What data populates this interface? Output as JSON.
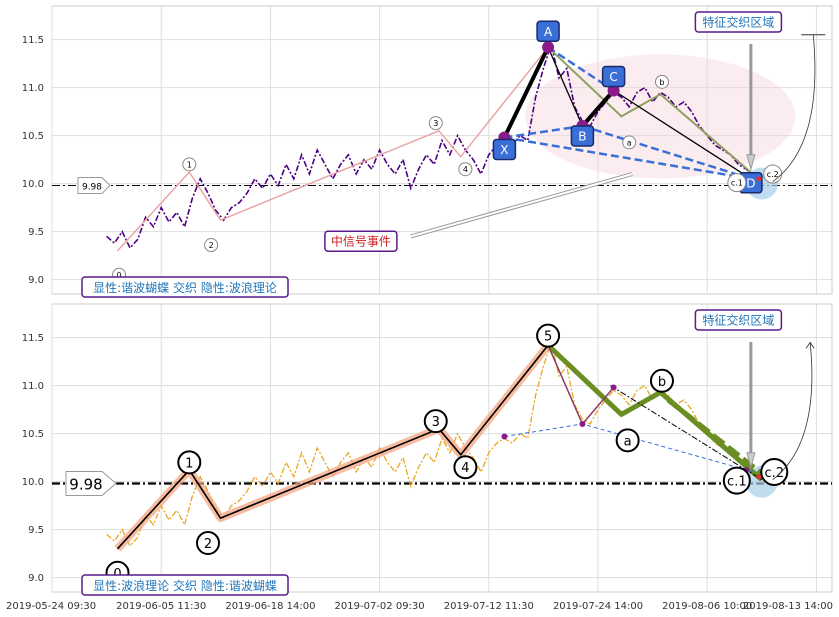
{
  "chart_data": [
    {
      "type": "line",
      "panel": "top",
      "ylim": [
        8.85,
        11.85
      ],
      "y_ticks": [
        "9.0",
        "9.5",
        "10.0",
        "10.5",
        "11.0",
        "11.5"
      ],
      "reference_value": 9.98,
      "reference_label": "9.98",
      "price_series": [
        [
          0.5,
          9.45
        ],
        [
          1,
          9.38
        ],
        [
          1.5,
          9.5
        ],
        [
          2,
          9.33
        ],
        [
          2.5,
          9.42
        ],
        [
          3,
          9.65
        ],
        [
          3.5,
          9.55
        ],
        [
          4,
          9.75
        ],
        [
          4.5,
          9.6
        ],
        [
          5,
          9.7
        ],
        [
          5.5,
          9.55
        ],
        [
          6,
          9.85
        ],
        [
          6.5,
          10.05
        ],
        [
          7,
          9.9
        ],
        [
          7.5,
          9.72
        ],
        [
          8,
          9.62
        ],
        [
          8.5,
          9.75
        ],
        [
          9,
          9.8
        ],
        [
          9.5,
          9.9
        ],
        [
          10,
          10.05
        ],
        [
          10.5,
          9.95
        ],
        [
          11,
          10.1
        ],
        [
          11.5,
          9.98
        ],
        [
          12,
          10.2
        ],
        [
          12.5,
          10.05
        ],
        [
          13,
          10.3
        ],
        [
          13.5,
          10.1
        ],
        [
          14,
          10.35
        ],
        [
          14.5,
          10.2
        ],
        [
          15,
          10.05
        ],
        [
          15.5,
          10.2
        ],
        [
          16,
          10.3
        ],
        [
          16.5,
          10.1
        ],
        [
          17,
          10.25
        ],
        [
          17.5,
          10.15
        ],
        [
          18,
          10.35
        ],
        [
          18.5,
          10.2
        ],
        [
          19,
          10.1
        ],
        [
          19.5,
          10.25
        ],
        [
          20,
          9.95
        ],
        [
          20.5,
          10.15
        ],
        [
          21,
          10.3
        ],
        [
          21.5,
          10.2
        ],
        [
          22,
          10.45
        ],
        [
          22.5,
          10.3
        ],
        [
          23,
          10.5
        ],
        [
          23.5,
          10.35
        ],
        [
          24,
          10.25
        ],
        [
          24.5,
          10.1
        ],
        [
          25,
          10.3
        ],
        [
          25.5,
          10.4
        ],
        [
          26,
          10.45
        ],
        [
          26.5,
          10.4
        ],
        [
          27,
          10.5
        ],
        [
          27.5,
          10.45
        ],
        [
          28,
          10.9
        ],
        [
          28.5,
          11.2
        ],
        [
          29,
          11.45
        ],
        [
          29.5,
          11.1
        ],
        [
          30,
          11.2
        ],
        [
          30.5,
          10.8
        ],
        [
          31,
          10.65
        ],
        [
          31.5,
          10.6
        ],
        [
          32,
          10.75
        ],
        [
          32.5,
          10.85
        ],
        [
          33,
          10.95
        ],
        [
          33.5,
          10.9
        ],
        [
          34,
          10.8
        ],
        [
          34.5,
          10.95
        ],
        [
          35,
          11.0
        ],
        [
          35.5,
          10.85
        ],
        [
          36,
          10.95
        ],
        [
          36.5,
          10.9
        ],
        [
          37,
          10.8
        ],
        [
          37.5,
          10.85
        ],
        [
          38,
          10.75
        ],
        [
          38.5,
          10.6
        ],
        [
          39,
          10.5
        ],
        [
          39.5,
          10.4
        ],
        [
          40,
          10.35
        ],
        [
          40.5,
          10.3
        ],
        [
          41,
          10.2
        ],
        [
          41.5,
          10.15
        ],
        [
          42,
          10.08
        ],
        [
          42.5,
          10.05
        ],
        [
          43,
          10.1
        ]
      ],
      "harmonic_points": [
        {
          "label": "X",
          "x": 26.0,
          "y": 10.48
        },
        {
          "label": "A",
          "x": 28.8,
          "y": 11.42
        },
        {
          "label": "B",
          "x": 31.0,
          "y": 10.6
        },
        {
          "label": "C",
          "x": 33.0,
          "y": 10.97
        },
        {
          "label": "D",
          "x": 41.8,
          "y": 10.05
        }
      ],
      "wave_points": [
        {
          "label": "0",
          "x": 1.2,
          "y": 9.3
        },
        {
          "label": "1",
          "x": 5.8,
          "y": 10.12
        },
        {
          "label": "2",
          "x": 7.8,
          "y": 9.62
        },
        {
          "label": "3",
          "x": 21.8,
          "y": 10.55
        },
        {
          "label": "4",
          "x": 23.2,
          "y": 10.28
        },
        {
          "label": "5",
          "x": 28.8,
          "y": 11.42
        },
        {
          "label": "a",
          "x": 33.5,
          "y": 10.85
        },
        {
          "label": "b",
          "x": 36.0,
          "y": 10.93
        },
        {
          "label": "c.1",
          "x": 40.8,
          "y": 10.05
        },
        {
          "label": "c.2",
          "x": 43.3,
          "y": 9.98
        }
      ],
      "wave_circle_labels": [
        {
          "label": "0",
          "x": 1.3,
          "y": 9.05
        },
        {
          "label": "1",
          "x": 5.8,
          "y": 10.2
        },
        {
          "label": "2",
          "x": 7.2,
          "y": 9.36
        },
        {
          "label": "3",
          "x": 21.6,
          "y": 10.63
        },
        {
          "label": "4",
          "x": 23.5,
          "y": 10.15
        },
        {
          "label": "b",
          "x": 36.1,
          "y": 11.06
        },
        {
          "label": "a",
          "x": 34.0,
          "y": 10.43
        },
        {
          "label": "c.1",
          "x": 40.9,
          "y": 10.01
        },
        {
          "label": "c.2",
          "x": 43.2,
          "y": 10.1
        }
      ],
      "annotations": {
        "zone_label": "特征交织区域",
        "event_label": "中信号事件",
        "caption": "显性:谐波蝴蝶 交织 隐性:波浪理论"
      }
    },
    {
      "type": "line",
      "panel": "bottom",
      "ylim": [
        8.85,
        11.85
      ],
      "y_ticks": [
        "9.0",
        "9.5",
        "10.0",
        "10.5",
        "11.0",
        "11.5"
      ],
      "reference_value": 9.98,
      "reference_label": "9.98",
      "x_tick_labels": [
        "2019-05-24 09:30",
        "2019-06-05 11:30",
        "2019-06-18 14:00",
        "2019-07-02 09:30",
        "2019-07-12 11:30",
        "2019-07-24 14:00",
        "2019-08-06 10:00",
        "2019-08-13 14:00"
      ],
      "wave_circle_labels": [
        {
          "label": "0",
          "x": 1.2,
          "y": 9.05
        },
        {
          "label": "1",
          "x": 5.8,
          "y": 10.2
        },
        {
          "label": "2",
          "x": 7.0,
          "y": 9.36
        },
        {
          "label": "3",
          "x": 21.6,
          "y": 10.63
        },
        {
          "label": "4",
          "x": 23.5,
          "y": 10.15
        },
        {
          "label": "5",
          "x": 28.8,
          "y": 11.52
        },
        {
          "label": "a",
          "x": 33.9,
          "y": 10.43
        },
        {
          "label": "b",
          "x": 36.1,
          "y": 11.05
        },
        {
          "label": "c.1",
          "x": 40.9,
          "y": 10.01
        },
        {
          "label": "c.2",
          "x": 43.3,
          "y": 10.1
        }
      ],
      "annotations": {
        "zone_label": "特征交织区域",
        "caption": "显性:波浪理论 交织 隐性:谐波蝴蝶"
      }
    }
  ],
  "colors": {
    "top_price": "#4b0082",
    "bottom_price": "#e8a820",
    "harmonic_dash": "#3a6fd8",
    "box_fill": "#3a6fd8",
    "wave_green": "#6b8e23",
    "wave_salmon": "#f4a582",
    "zone_fill": "#f7d5dc",
    "caption_border": "#5a1a8a",
    "caption_text": "#2277bb",
    "event_text": "#cc2222"
  }
}
